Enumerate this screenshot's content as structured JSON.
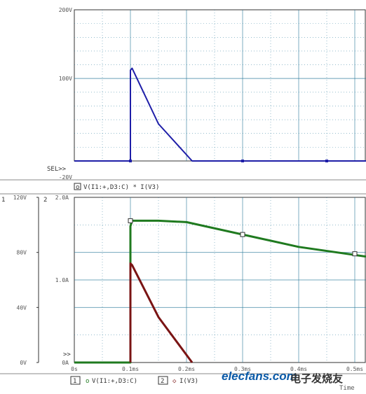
{
  "colors": {
    "top_trace": "#1e1ea8",
    "green_trace": "#1f7a1f",
    "red_trace": "#7a1414",
    "grid": "#2a7a9a",
    "axis_text": "#555555"
  },
  "chart_data": [
    {
      "type": "line",
      "xlim": [
        0,
        0.52
      ],
      "ylim": [
        -20,
        200
      ],
      "yticks": [
        {
          "value": 200,
          "label": "200V"
        },
        {
          "value": 100,
          "label": "100V"
        },
        {
          "value": -20,
          "label": "-20V"
        }
      ],
      "sel_marker": "SEL>>",
      "legend": [
        {
          "prefix": "o",
          "text": "V(I1:+,D3:C) * I(V3)"
        }
      ],
      "series": [
        {
          "color": "#1e1ea8",
          "points": [
            [
              0.0,
              -20
            ],
            [
              0.1,
              -20
            ],
            [
              0.1,
              100
            ],
            [
              0.1,
              0
            ],
            [
              0.1,
              112
            ],
            [
              0.103,
              115
            ],
            [
              0.15,
              34
            ],
            [
              0.21,
              -20
            ],
            [
              0.52,
              -20
            ]
          ]
        }
      ]
    },
    {
      "type": "line",
      "xlim": [
        0,
        0.52
      ],
      "x_ticks": [
        {
          "value": 0,
          "label": "0s"
        },
        {
          "value": 0.1,
          "label": "0.1ms"
        },
        {
          "value": 0.2,
          "label": "0.2ms"
        },
        {
          "value": 0.3,
          "label": "0.3ms"
        },
        {
          "value": 0.4,
          "label": "0.4ms"
        },
        {
          "value": 0.5,
          "label": "0.5ms"
        }
      ],
      "xlabel": "Time",
      "axes": [
        {
          "id": "1",
          "ylim": [
            0,
            120
          ],
          "ticks": [
            {
              "value": 0,
              "label": "0V"
            },
            {
              "value": 40,
              "label": "40V"
            },
            {
              "value": 80,
              "label": "80V"
            },
            {
              "value": 120,
              "label": "120V"
            }
          ]
        },
        {
          "id": "2",
          "ylim": [
            0,
            2.0
          ],
          "ticks": [
            {
              "value": 0,
              "label": "0A"
            },
            {
              "value": 1.0,
              "label": "1.0A"
            },
            {
              "value": 2.0,
              "label": "2.0A"
            }
          ]
        }
      ],
      "sel_marker": ">>",
      "legend": [
        {
          "axis": "1",
          "prefix": "o",
          "text": "V(I1:+,D3:C)"
        },
        {
          "axis": "2",
          "prefix": "◇",
          "text": "I(V3)"
        }
      ],
      "series": [
        {
          "color": "#1f7a1f",
          "axis": "1",
          "points": [
            [
              0.0,
              0
            ],
            [
              0.1,
              0
            ],
            [
              0.1,
              99
            ],
            [
              0.103,
              103
            ],
            [
              0.15,
              103
            ],
            [
              0.2,
              102
            ],
            [
              0.3,
              93
            ],
            [
              0.4,
              84
            ],
            [
              0.52,
              77
            ]
          ]
        },
        {
          "color": "#7a1414",
          "axis": "2",
          "points": [
            [
              0.1,
              0
            ],
            [
              0.1,
              1.2
            ],
            [
              0.103,
              1.18
            ],
            [
              0.15,
              0.55
            ],
            [
              0.21,
              0
            ]
          ]
        }
      ]
    }
  ],
  "watermark": {
    "logo": "elecfans.com",
    "cn": "电子发烧友"
  }
}
